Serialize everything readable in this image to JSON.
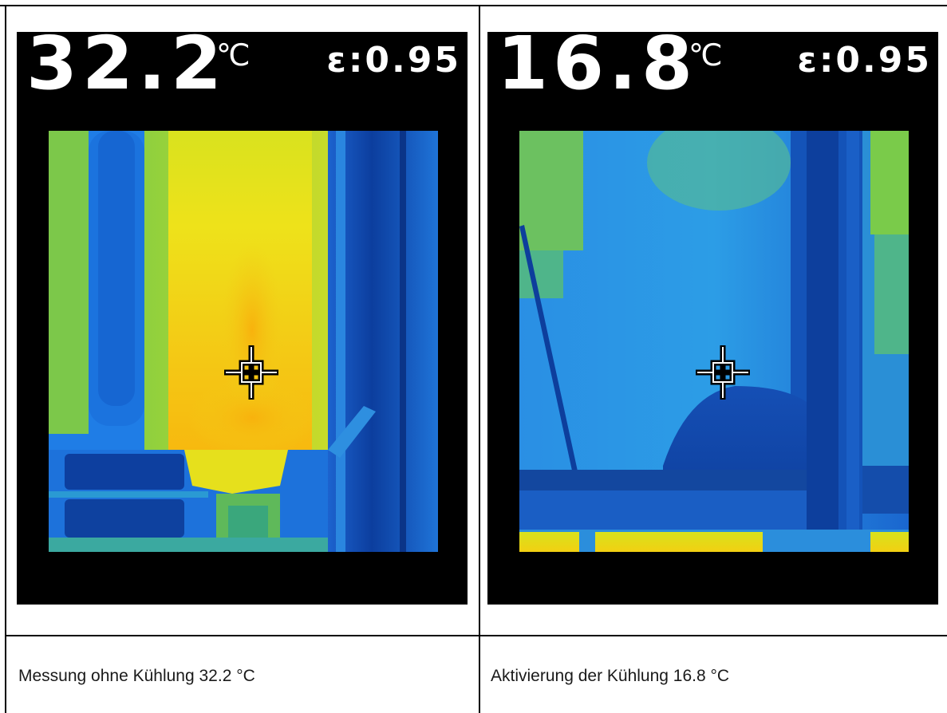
{
  "cells": [
    {
      "temperature": "32.2",
      "unit": "℃",
      "emissivity": "ε:0.95",
      "caption": "Messung ohne Kühlung 32.2 °C"
    },
    {
      "temperature": "16.8",
      "unit": "℃",
      "emissivity": "ε:0.95",
      "caption": "Aktivierung der Kühlung 16.8 °C"
    }
  ],
  "palette": {
    "cold": "#0a3d99",
    "cool": "#1f7de6",
    "mid": "#2aa6d6",
    "warm": "#7cc84a",
    "hot": "#e8e41a",
    "hottest": "#f6b40e"
  }
}
